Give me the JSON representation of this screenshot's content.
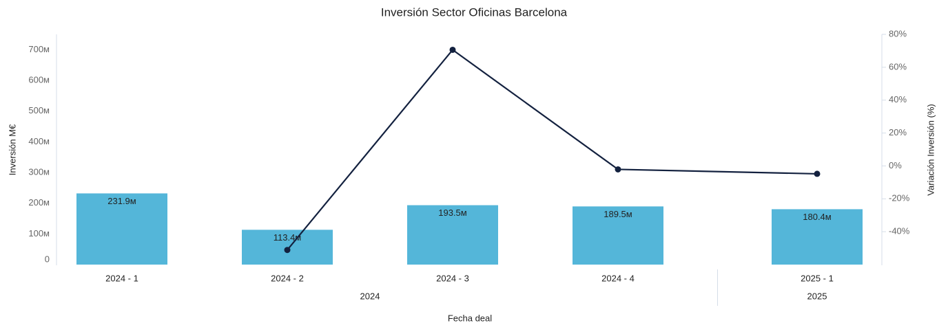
{
  "chart_data": {
    "type": "bar_line",
    "title": "Inversión Sector Oficinas Barcelona",
    "ylabel": "Inversión M€",
    "y2label": "Variación Inversión (%)",
    "xlabel": "Fecha deal",
    "categories": [
      "2024 - 1",
      "2024 - 2",
      "2024 - 3",
      "2024 - 4",
      "2025 - 1"
    ],
    "x_groups": [
      "2024",
      "2025"
    ],
    "series": [
      {
        "type": "bar",
        "color": "#54b6d9",
        "values": [
          231.9,
          113.4,
          193.5,
          189.5,
          180.4
        ],
        "value_labels": [
          "231.9м",
          "113.4м",
          "193.5м",
          "189.5м",
          "180.4м"
        ]
      },
      {
        "type": "line",
        "axis": "y2",
        "color": "#13213f",
        "values": [
          null,
          -51.1,
          70.6,
          -2.1,
          -4.8
        ]
      }
    ],
    "ylim": [
      0,
      750
    ],
    "yticks": [
      0,
      {
        "value": 100,
        "label": "100м"
      },
      {
        "value": 200,
        "label": "200м"
      },
      {
        "value": 300,
        "label": "300м"
      },
      {
        "value": 400,
        "label": "400м"
      },
      {
        "value": 500,
        "label": "500м"
      },
      {
        "value": 600,
        "label": "600м"
      },
      {
        "value": 700,
        "label": "700м"
      }
    ],
    "y2lim": [
      -60,
      80
    ],
    "y2ticks": [
      {
        "value": -40,
        "label": "-40%"
      },
      {
        "value": -20,
        "label": "-20%"
      },
      {
        "value": 0,
        "label": "0%"
      },
      {
        "value": 20,
        "label": "20%"
      },
      {
        "value": 40,
        "label": "40%"
      },
      {
        "value": 60,
        "label": "60%"
      },
      {
        "value": 80,
        "label": "80%"
      }
    ]
  }
}
